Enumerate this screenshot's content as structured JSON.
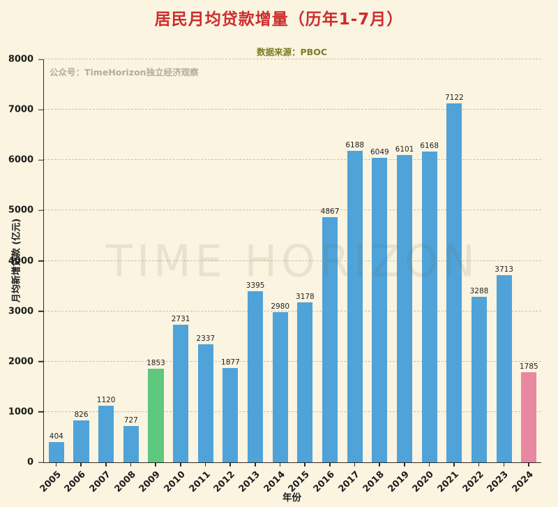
{
  "chart_data": {
    "type": "bar",
    "title": "居民月均贷款增量（历年1-7月）",
    "source": "数据来源：PBOC",
    "annotation": "公众号：TimeHorizon独立经济观察",
    "watermark": "TIME HORIZON",
    "xlabel": "年份",
    "ylabel": "月均新增贷款 (亿元)",
    "ylim": [
      0,
      8000
    ],
    "yticks": [
      0,
      1000,
      2000,
      3000,
      4000,
      5000,
      6000,
      7000,
      8000
    ],
    "grid": "horizontal-dashed",
    "legend": "none",
    "categories": [
      "2005",
      "2006",
      "2007",
      "2008",
      "2009",
      "2010",
      "2011",
      "2012",
      "2013",
      "2014",
      "2015",
      "2016",
      "2017",
      "2018",
      "2019",
      "2020",
      "2021",
      "2022",
      "2023",
      "2024"
    ],
    "values": [
      404,
      826,
      1120,
      727,
      1853,
      2731,
      2337,
      1877,
      3395,
      2980,
      3178,
      4867,
      6188,
      6049,
      6101,
      6168,
      7122,
      3288,
      3713,
      1785
    ],
    "default_bar_color": "#4fa3d9",
    "bar_colors": [
      "#4fa3d9",
      "#4fa3d9",
      "#4fa3d9",
      "#4fa3d9",
      "#5ec87e",
      "#4fa3d9",
      "#4fa3d9",
      "#4fa3d9",
      "#4fa3d9",
      "#4fa3d9",
      "#4fa3d9",
      "#4fa3d9",
      "#4fa3d9",
      "#4fa3d9",
      "#4fa3d9",
      "#4fa3d9",
      "#4fa3d9",
      "#4fa3d9",
      "#4fa3d9",
      "#e888a0"
    ],
    "colors": {
      "background": "#faf4e1",
      "title": "#cd2c2c",
      "source_text": "#7d7d23",
      "annotation_text": "#b3ac9c",
      "highlight_2009": "#5ec87e",
      "highlight_2024": "#e888a0"
    }
  }
}
